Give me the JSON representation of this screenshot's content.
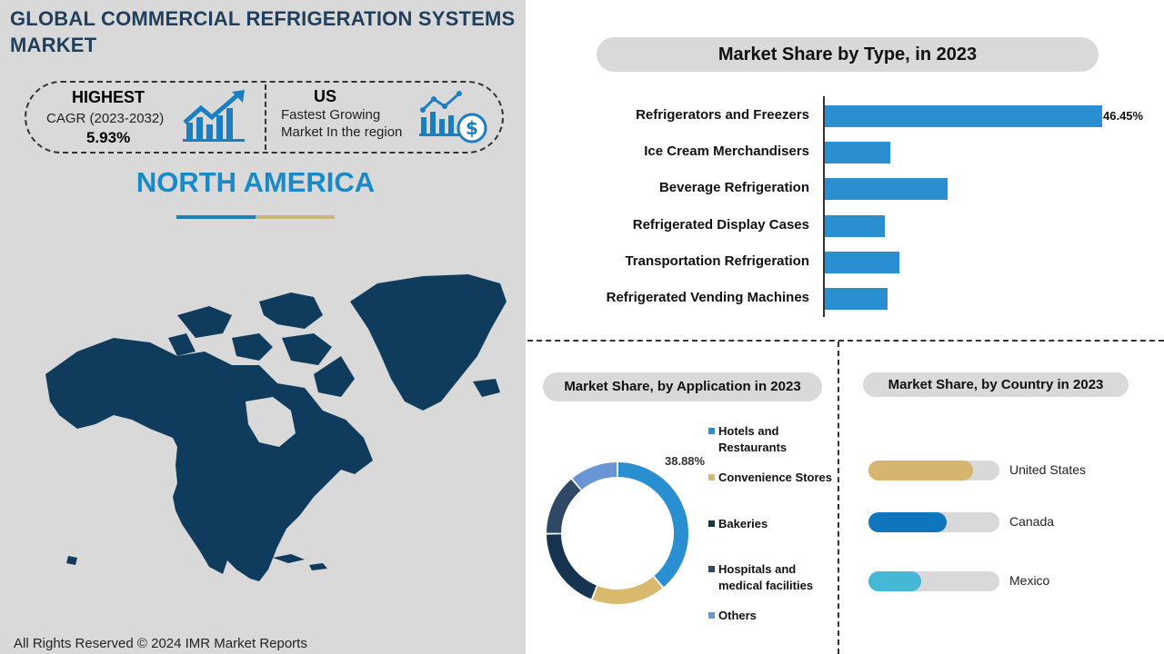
{
  "header": {
    "title": "GLOBAL COMMERCIAL REFRIGERATION SYSTEMS MARKET"
  },
  "stats": {
    "highest_label": "HIGHEST",
    "cagr_label": "CAGR (2023-2032)",
    "cagr_value": "5.93%",
    "country_label": "US",
    "country_desc_line1": "Fastest Growing",
    "country_desc_line2": "Market In the region"
  },
  "region": {
    "title": "NORTH AMERICA"
  },
  "footer": {
    "copyright": "All Rights Reserved © 2024 IMR Market Reports"
  },
  "colors": {
    "title_dark": "#1f3f5c",
    "accent_blue": "#1a8ac7",
    "accent_gold": "#cbb473",
    "bar_blue": "#2a8fd0",
    "map_navy": "#0f3b5c"
  },
  "icons": [
    "growth-chart-icon",
    "money-chart-icon",
    "north-america-map"
  ],
  "chart_data": [
    {
      "type": "bar",
      "title": "Market Share by Type,  in 2023",
      "orientation": "horizontal",
      "categories": [
        "Refrigerators and Freezers",
        "Ice Cream Merchandisers",
        "Beverage Refrigeration",
        "Refrigerated Display Cases",
        "Transportation Refrigeration",
        "Refrigerated Vending Machines"
      ],
      "values": [
        46.45,
        11,
        20.5,
        10,
        12.5,
        10.5
      ],
      "value_labels": [
        "46.45%",
        "",
        "",
        "",
        "",
        ""
      ],
      "xlim": [
        0,
        46.45
      ]
    },
    {
      "type": "pie",
      "title": "Market Share, by Application in 2023",
      "donut": true,
      "categories": [
        "Hotels and Restaurants",
        "Convenience Stores",
        "Bakeries",
        "Hospitals and medical facilities",
        "Others"
      ],
      "values": [
        38.88,
        17,
        19,
        14,
        11.12
      ],
      "colors": [
        "#2a8fd0",
        "#d9b96e",
        "#16334f",
        "#2f4866",
        "#6a95d4"
      ],
      "value_labels": [
        "38.88%",
        "",
        "",
        "",
        ""
      ],
      "legend": "right"
    },
    {
      "type": "bar",
      "title": "Market Share, by Country in 2023",
      "orientation": "horizontal",
      "categories": [
        "United States",
        "Canada",
        "Mexico"
      ],
      "values": [
        80,
        60,
        40
      ],
      "colors": [
        "#d6b56e",
        "#0f75bc",
        "#45b8d6"
      ],
      "xlim": [
        0,
        100
      ]
    }
  ]
}
